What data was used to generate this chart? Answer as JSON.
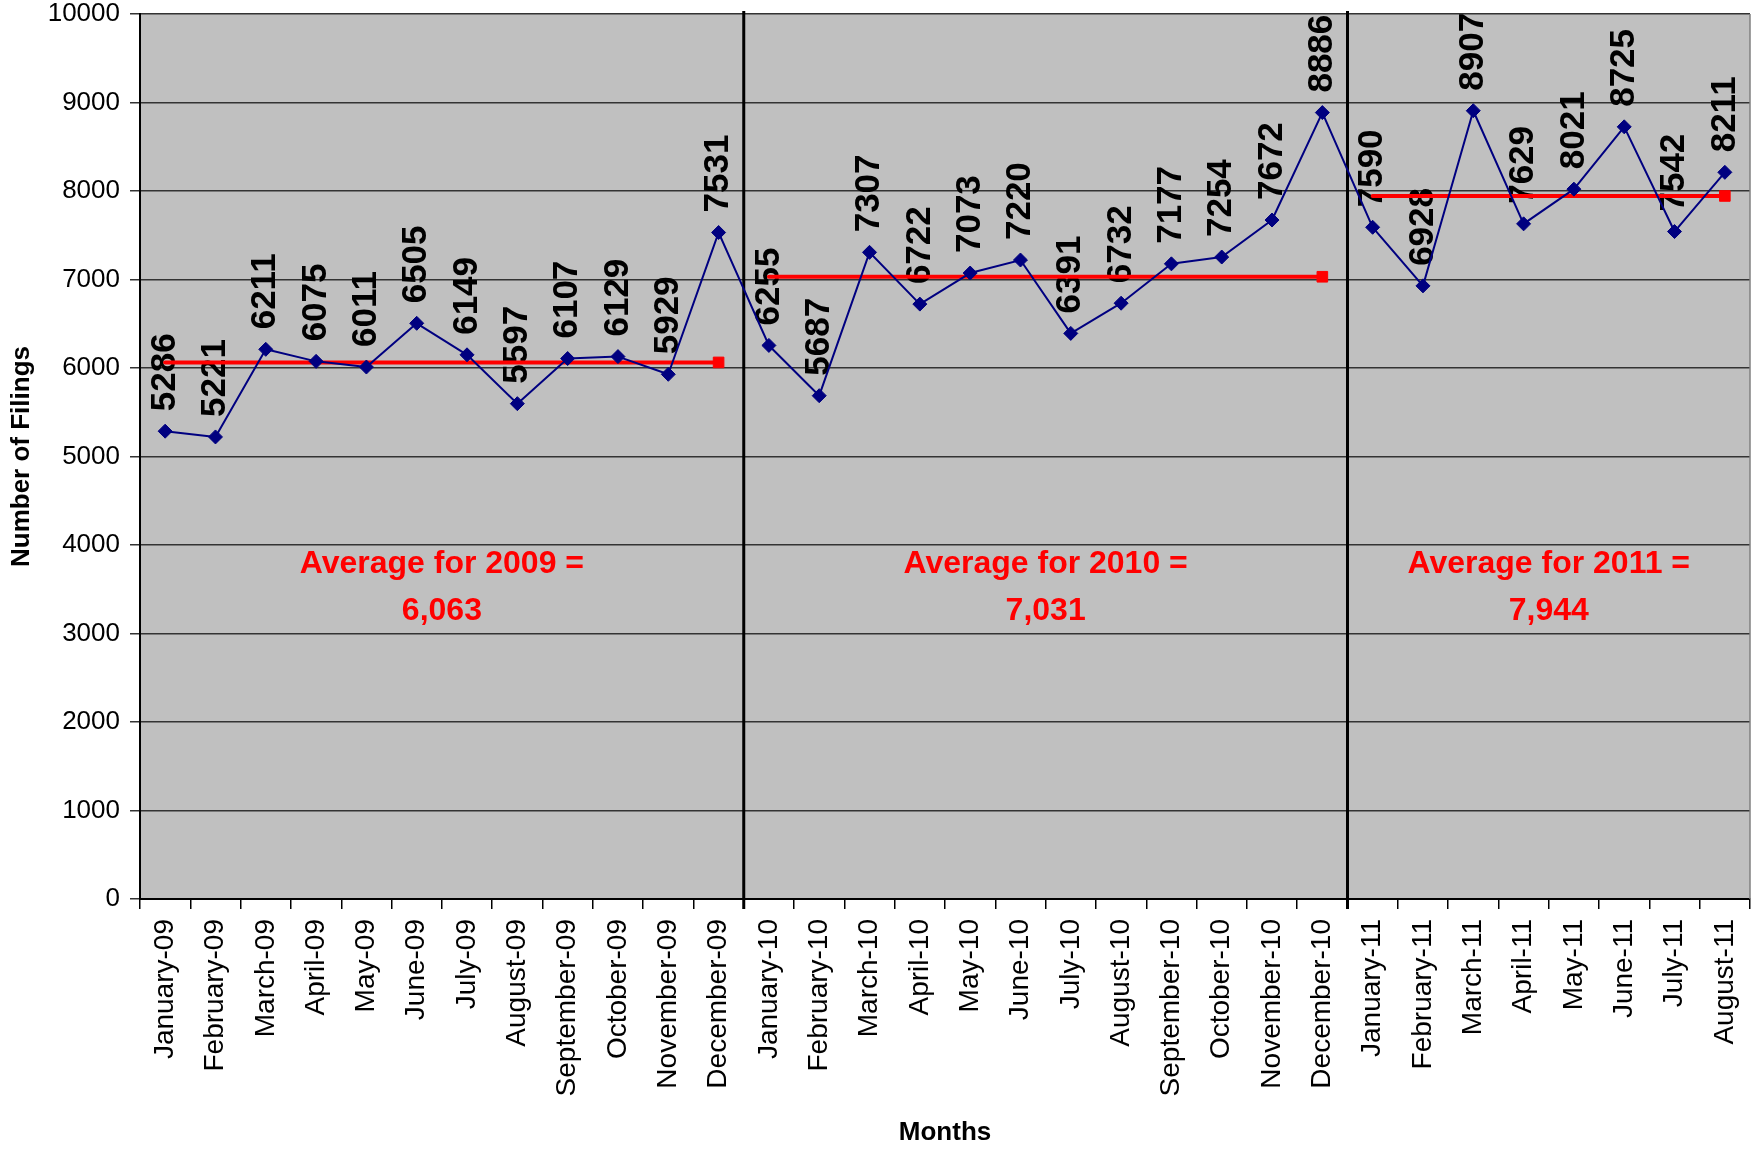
{
  "chart_data": {
    "type": "line",
    "xlabel": "Months",
    "ylabel": "Number of Filings",
    "categories": [
      "January-09",
      "February-09",
      "March-09",
      "April-09",
      "May-09",
      "June-09",
      "July-09",
      "August-09",
      "September-09",
      "October-09",
      "November-09",
      "December-09",
      "January-10",
      "February-10",
      "March-10",
      "April-10",
      "May-10",
      "June-10",
      "July-10",
      "August-10",
      "September-10",
      "October-10",
      "November-10",
      "December-10",
      "January-11",
      "February-11",
      "March-11",
      "April-11",
      "May-11",
      "June-11",
      "July-11",
      "August-11"
    ],
    "series": [
      {
        "color": "#000080",
        "marker": "diamond",
        "values": [
          5286,
          5221,
          6211,
          6075,
          6011,
          6505,
          6149,
          5597,
          6107,
          6129,
          5929,
          7531,
          6255,
          5687,
          7307,
          6722,
          7073,
          7220,
          6391,
          6732,
          7177,
          7254,
          7672,
          8886,
          7590,
          6928,
          8907,
          7629,
          8021,
          8725,
          7542,
          8211
        ],
        "value_labels": [
          "5286",
          "5221",
          "6211",
          "6075",
          "6011",
          "6505",
          "6149",
          "5597",
          "6107",
          "6129",
          "5929",
          "7531",
          "6255",
          "5687",
          "7307",
          "6722",
          "7073",
          "7220",
          "6391",
          "6732",
          "7177",
          "7254",
          "7672",
          "8886",
          "7590",
          "6928",
          "8907",
          "7629",
          "8021",
          "8725",
          "7542",
          "8211"
        ]
      },
      {
        "color": "#ff0000",
        "marker": "none",
        "values": [
          6063,
          6063,
          6063,
          6063,
          6063,
          6063,
          6063,
          6063,
          6063,
          6063,
          6063,
          6063,
          null,
          null,
          null,
          null,
          null,
          null,
          null,
          null,
          null,
          null,
          null,
          null,
          null,
          null,
          null,
          null,
          null,
          null,
          null,
          null
        ]
      },
      {
        "color": "#ff0000",
        "marker": "none",
        "values": [
          null,
          null,
          null,
          null,
          null,
          null,
          null,
          null,
          null,
          null,
          null,
          null,
          7031,
          7031,
          7031,
          7031,
          7031,
          7031,
          7031,
          7031,
          7031,
          7031,
          7031,
          7031,
          null,
          null,
          null,
          null,
          null,
          null,
          null,
          null
        ]
      },
      {
        "color": "#ff0000",
        "marker": "none",
        "values": [
          null,
          null,
          null,
          null,
          null,
          null,
          null,
          null,
          null,
          null,
          null,
          null,
          null,
          null,
          null,
          null,
          null,
          null,
          null,
          null,
          null,
          null,
          null,
          null,
          7944,
          7944,
          7944,
          7944,
          7944,
          7944,
          7944,
          7944
        ]
      },
      {
        "type": "scatter",
        "color": "#ff0000",
        "marker": "square",
        "values": [
          null,
          null,
          null,
          null,
          null,
          null,
          null,
          null,
          null,
          null,
          null,
          6063,
          null,
          null,
          null,
          null,
          null,
          null,
          null,
          null,
          null,
          null,
          null,
          7031,
          null,
          null,
          null,
          null,
          null,
          null,
          null,
          7944
        ]
      }
    ],
    "ylim": [
      0,
      10000
    ],
    "yticks": [
      0,
      1000,
      2000,
      3000,
      4000,
      5000,
      6000,
      7000,
      8000,
      9000,
      10000
    ],
    "grid": "y",
    "annotations": [
      "Average for 2009 = 6,063",
      "Average for 2010 = 7,031",
      "Average for 2011 = 7,944"
    ]
  }
}
